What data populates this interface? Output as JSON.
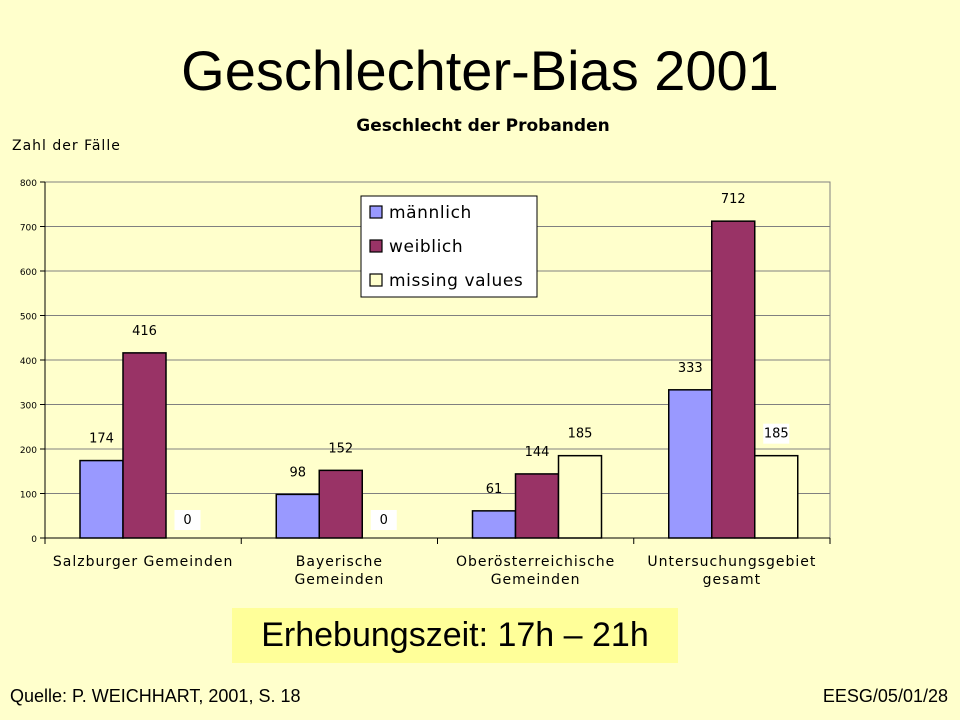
{
  "slide": {
    "title": "Geschlechter-Bias 2001",
    "callout": "Erhebungszeit:  17h – 21h",
    "source": "Quelle: P. WEICHHART, 2001, S. 18",
    "code": "EESG/05/01/28"
  },
  "chart_data": {
    "type": "bar",
    "title": "Geschlecht der Probanden",
    "ylabel": "Zahl der Fälle",
    "xlabel": "",
    "ylim": [
      0,
      800
    ],
    "yticks": [
      0,
      100,
      200,
      300,
      400,
      500,
      600,
      700,
      800
    ],
    "grid": true,
    "legend_position": "top-center",
    "categories": [
      [
        "Salzburger Gemeinden"
      ],
      [
        "Bayerische",
        "Gemeinden"
      ],
      [
        "Oberösterreichische",
        "Gemeinden"
      ],
      [
        "Untersuchungsgebiet",
        "gesamt"
      ]
    ],
    "series": [
      {
        "name": "männlich",
        "values": [
          174,
          98,
          61,
          333
        ],
        "color": "#9999FF"
      },
      {
        "name": "weiblich",
        "values": [
          416,
          152,
          144,
          712
        ],
        "color": "#993366"
      },
      {
        "name": "missing values",
        "values": [
          0,
          0,
          185,
          185
        ],
        "color": "#FFFFCC"
      }
    ],
    "boxed_labels": {
      "2": [
        0,
        1,
        3
      ]
    }
  }
}
